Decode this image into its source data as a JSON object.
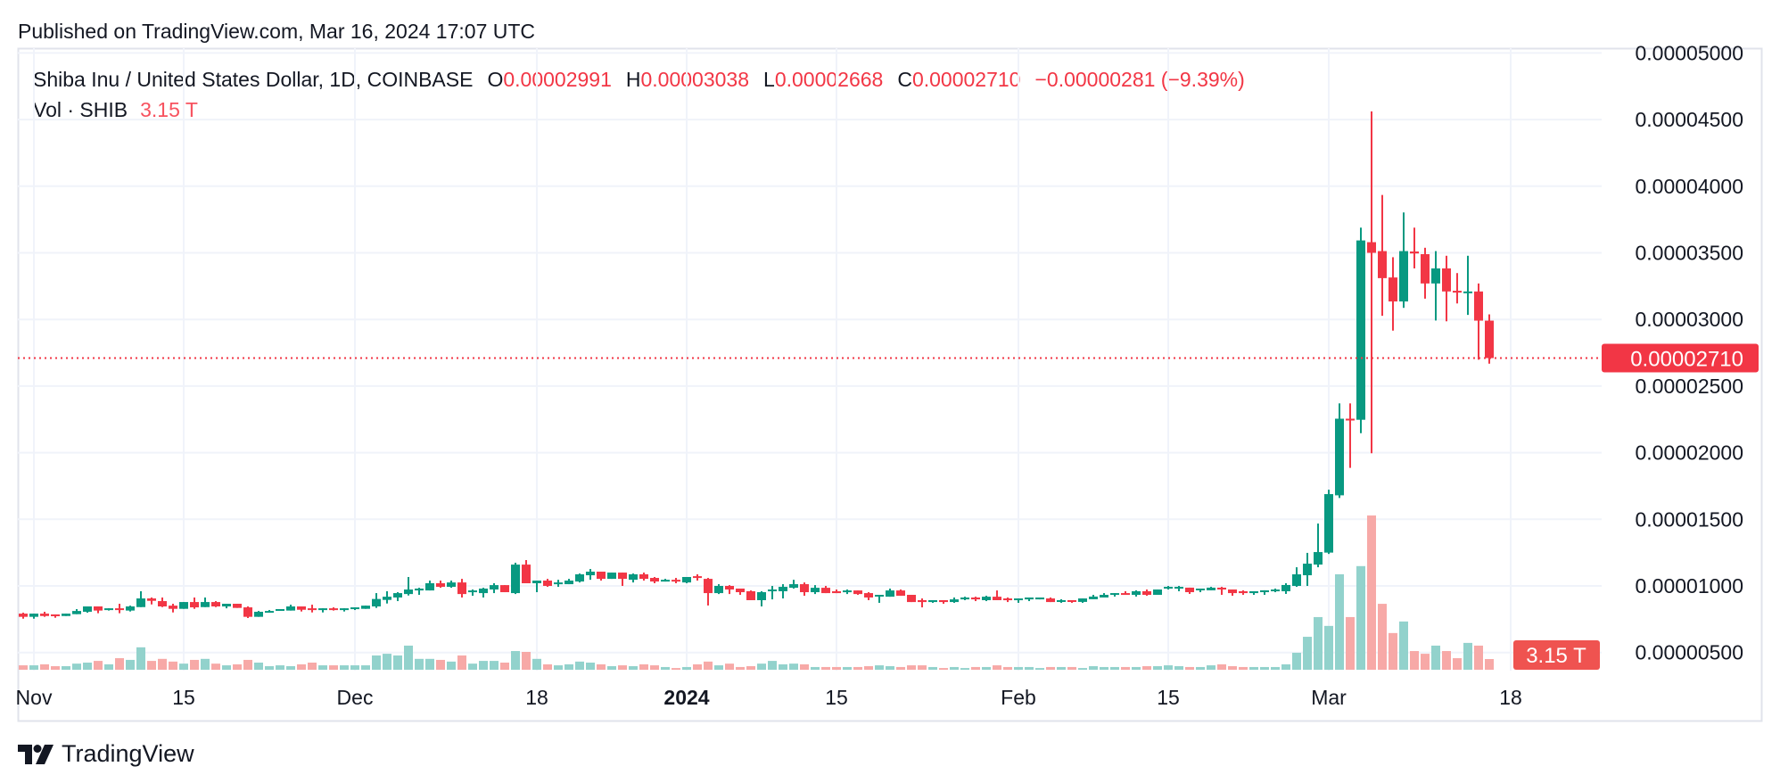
{
  "published": "Published on TradingView.com, Mar 16, 2024 17:07 UTC",
  "legend": {
    "symbol": "Shiba Inu / United States Dollar, 1D, COINBASE",
    "open_label": "O",
    "open": "0.00002991",
    "high_label": "H",
    "high": "0.00003038",
    "low_label": "L",
    "low": "0.00002668",
    "close_label": "C",
    "close": "0.00002710",
    "change": "−0.00000281 (−9.39%)",
    "volume_label": "Vol · SHIB",
    "volume": "3.15 T"
  },
  "logo": {
    "text": "TradingView",
    "icon": "tradingview-logo-icon"
  },
  "colors": {
    "up": "#089981",
    "down": "#f23645",
    "volume_up": "#92d2cc",
    "volume_down": "#f7a9a7",
    "grid": "#f0f3fa",
    "frame": "#e0e3eb"
  },
  "chart_data": {
    "type": "candlestick",
    "volume_unit": "T",
    "grid": true,
    "price_axis": {
      "position": "right",
      "ticks": [
        "0.00005000",
        "0.00004500",
        "0.00004000",
        "0.00003500",
        "0.00003000",
        "0.00002500",
        "0.00002000",
        "0.00001500",
        "0.00001000",
        "0.00000500"
      ],
      "last_price": 2.71e-05,
      "last_price_label": "0.00002710",
      "last_volume_label": "3.15 T"
    },
    "time_axis": {
      "ticks": [
        {
          "label": "Nov",
          "date": "2023-11-01",
          "bold": false
        },
        {
          "label": "15",
          "date": "2023-11-15",
          "bold": false
        },
        {
          "label": "Dec",
          "date": "2023-12-01",
          "bold": false
        },
        {
          "label": "18",
          "date": "2023-12-18",
          "bold": false
        },
        {
          "label": "2024",
          "date": "2024-01-01",
          "bold": true
        },
        {
          "label": "15",
          "date": "2024-01-15",
          "bold": false
        },
        {
          "label": "Feb",
          "date": "2024-02-01",
          "bold": false
        },
        {
          "label": "15",
          "date": "2024-02-15",
          "bold": false
        },
        {
          "label": "Mar",
          "date": "2024-03-01",
          "bold": false
        },
        {
          "label": "18",
          "date": "2024-03-18",
          "bold": false
        }
      ]
    },
    "columns": [
      "date",
      "open",
      "high",
      "low",
      "close",
      "volume"
    ],
    "candles": [
      [
        "2023-10-31",
        7.92e-06,
        7.99e-06,
        7.54e-06,
        7.68e-06,
        1.3
      ],
      [
        "2023-11-01",
        7.68e-06,
        7.92e-06,
        7.54e-06,
        7.92e-06,
        1.3
      ],
      [
        "2023-11-02",
        7.92e-06,
        8.06e-06,
        7.68e-06,
        7.74e-06,
        1.6
      ],
      [
        "2023-11-03",
        7.86e-06,
        7.86e-06,
        7.61e-06,
        7.74e-06,
        1.05
      ],
      [
        "2023-11-04",
        7.74e-06,
        7.92e-06,
        7.74e-06,
        7.92e-06,
        1.05
      ],
      [
        "2023-11-05",
        7.88e-06,
        8.26e-06,
        7.88e-06,
        8.12e-06,
        1.8
      ],
      [
        "2023-11-06",
        8.06e-06,
        8.46e-06,
        7.99e-06,
        8.46e-06,
        2.1
      ],
      [
        "2023-11-07",
        8.46e-06,
        8.46e-06,
        7.95e-06,
        8.15e-06,
        2.6
      ],
      [
        "2023-11-08",
        8.21e-06,
        8.32e-06,
        8.15e-06,
        8.32e-06,
        1.6
      ],
      [
        "2023-11-09",
        8.32e-06,
        8.66e-06,
        7.95e-06,
        8.21e-06,
        3.4
      ],
      [
        "2023-11-10",
        8.15e-06,
        8.52e-06,
        8.08e-06,
        8.46e-06,
        2.9
      ],
      [
        "2023-11-11",
        8.41e-06,
        9.6e-06,
        8.41e-06,
        9.06e-06,
        6.6
      ],
      [
        "2023-11-12",
        9.06e-06,
        9.13e-06,
        8.61e-06,
        8.88e-06,
        2.6
      ],
      [
        "2023-11-13",
        8.86e-06,
        9.13e-06,
        8.41e-06,
        8.46e-06,
        3.2
      ],
      [
        "2023-11-14",
        8.52e-06,
        8.66e-06,
        8.01e-06,
        8.28e-06,
        2.4
      ],
      [
        "2023-11-15",
        8.28e-06,
        8.79e-06,
        8.28e-06,
        8.79e-06,
        1.8
      ],
      [
        "2023-11-16",
        8.79e-06,
        9.13e-06,
        8.28e-06,
        8.39e-06,
        2.9
      ],
      [
        "2023-11-17",
        8.41e-06,
        9.13e-06,
        8.41e-06,
        8.79e-06,
        3.2
      ],
      [
        "2023-11-18",
        8.79e-06,
        8.86e-06,
        8.41e-06,
        8.46e-06,
        1.8
      ],
      [
        "2023-11-19",
        8.46e-06,
        8.66e-06,
        8.32e-06,
        8.66e-06,
        1.3
      ],
      [
        "2023-11-20",
        8.66e-06,
        8.66e-06,
        8.35e-06,
        8.35e-06,
        1.6
      ],
      [
        "2023-11-21",
        8.39e-06,
        8.46e-06,
        7.59e-06,
        7.68e-06,
        2.9
      ],
      [
        "2023-11-22",
        7.68e-06,
        8.12e-06,
        7.68e-06,
        8.06e-06,
        2.1
      ],
      [
        "2023-11-23",
        8.01e-06,
        8.19e-06,
        8.01e-06,
        8.12e-06,
        1.05
      ],
      [
        "2023-11-24",
        8.15e-06,
        8.26e-06,
        8.15e-06,
        8.26e-06,
        1.3
      ],
      [
        "2023-11-25",
        8.15e-06,
        8.59e-06,
        8.15e-06,
        8.46e-06,
        1.05
      ],
      [
        "2023-11-26",
        8.46e-06,
        8.46e-06,
        8.08e-06,
        8.21e-06,
        1.6
      ],
      [
        "2023-11-27",
        8.32e-06,
        8.59e-06,
        8.01e-06,
        8.21e-06,
        2.1
      ],
      [
        "2023-11-28",
        8.21e-06,
        8.32e-06,
        8.01e-06,
        8.32e-06,
        1.3
      ],
      [
        "2023-11-29",
        8.32e-06,
        8.39e-06,
        8.15e-06,
        8.21e-06,
        1.3
      ],
      [
        "2023-11-30",
        8.21e-06,
        8.32e-06,
        8.08e-06,
        8.32e-06,
        1.3
      ],
      [
        "2023-12-01",
        8.28e-06,
        8.39e-06,
        8.19e-06,
        8.39e-06,
        1.3
      ],
      [
        "2023-12-02",
        8.28e-06,
        8.52e-06,
        8.28e-06,
        8.52e-06,
        1.3
      ],
      [
        "2023-12-03",
        8.46e-06,
        9.46e-06,
        8.35e-06,
        9.02e-06,
        4.2
      ],
      [
        "2023-12-04",
        8.95e-06,
        9.6e-06,
        8.68e-06,
        9.19e-06,
        4.7
      ],
      [
        "2023-12-05",
        9.13e-06,
        9.53e-06,
        8.86e-06,
        9.46e-06,
        4.2
      ],
      [
        "2023-12-06",
        9.39e-06,
        1.067e-05,
        9.28e-06,
        9.73e-06,
        7.1
      ],
      [
        "2023-12-07",
        9.66e-06,
        9.86e-06,
        9.33e-06,
        9.8e-06,
        3.2
      ],
      [
        "2023-12-08",
        9.66e-06,
        1.04e-05,
        9.66e-06,
        1.02e-05,
        3.2
      ],
      [
        "2023-12-09",
        1.02e-05,
        1.04e-05,
        9.86e-06,
        9.93e-06,
        2.9
      ],
      [
        "2023-12-10",
        9.93e-06,
        1.04e-05,
        9.86e-06,
        1.026e-05,
        2.4
      ],
      [
        "2023-12-11",
        1.026e-05,
        1.053e-05,
        9.13e-06,
        9.39e-06,
        4.2
      ],
      [
        "2023-12-12",
        9.53e-06,
        9.73e-06,
        9.26e-06,
        9.66e-06,
        1.8
      ],
      [
        "2023-12-13",
        9.46e-06,
        9.86e-06,
        9.13e-06,
        9.8e-06,
        2.6
      ],
      [
        "2023-12-14",
        9.73e-06,
        1.02e-05,
        9.46e-06,
        1.006e-05,
        2.6
      ],
      [
        "2023-12-15",
        1.006e-05,
        1.006e-05,
        9.53e-06,
        9.53e-06,
        2.1
      ],
      [
        "2023-12-16",
        9.46e-06,
        1.174e-05,
        9.39e-06,
        1.16e-05,
        5.5
      ],
      [
        "2023-12-17",
        1.16e-05,
        1.194e-05,
        1.02e-05,
        1.02e-05,
        5.25
      ],
      [
        "2023-12-18",
        1.02e-05,
        1.04e-05,
        9.53e-06,
        1.04e-05,
        3.2
      ],
      [
        "2023-12-19",
        1.04e-05,
        1.053e-05,
        9.93e-06,
        1e-05,
        1.6
      ],
      [
        "2023-12-20",
        1.013e-05,
        1.046e-05,
        9.93e-06,
        1.026e-05,
        1.3
      ],
      [
        "2023-12-21",
        1.013e-05,
        1.053e-05,
        1.013e-05,
        1.04e-05,
        1.6
      ],
      [
        "2023-12-22",
        1.033e-05,
        1.093e-05,
        1.026e-05,
        1.087e-05,
        2.4
      ],
      [
        "2023-12-23",
        1.08e-05,
        1.127e-05,
        1.046e-05,
        1.107e-05,
        2.1
      ],
      [
        "2023-12-24",
        1.107e-05,
        1.107e-05,
        1.04e-05,
        1.053e-05,
        1.6
      ],
      [
        "2023-12-25",
        1.053e-05,
        1.1e-05,
        1.053e-05,
        1.1e-05,
        1.05
      ],
      [
        "2023-12-26",
        1.1e-05,
        1.1e-05,
        1e-05,
        1.053e-05,
        1.3
      ],
      [
        "2023-12-27",
        1.046e-05,
        1.093e-05,
        1.026e-05,
        1.087e-05,
        1.05
      ],
      [
        "2023-12-28",
        1.087e-05,
        1.1e-05,
        1.04e-05,
        1.053e-05,
        1.6
      ],
      [
        "2023-12-29",
        1.06e-05,
        1.067e-05,
        1.02e-05,
        1.033e-05,
        1.3
      ],
      [
        "2023-12-30",
        1.033e-05,
        1.053e-05,
        1.033e-05,
        1.046e-05,
        0.8
      ],
      [
        "2023-12-31",
        1.046e-05,
        1.06e-05,
        1.02e-05,
        1.033e-05,
        0.5
      ],
      [
        "2024-01-01",
        1.026e-05,
        1.067e-05,
        1.02e-05,
        1.067e-05,
        0.8
      ],
      [
        "2024-01-02",
        1.073e-05,
        1.087e-05,
        1.04e-05,
        1.06e-05,
        1.6
      ],
      [
        "2024-01-03",
        1.053e-05,
        1.06e-05,
        8.53e-06,
        9.46e-06,
        2.4
      ],
      [
        "2024-01-04",
        9.46e-06,
        1.013e-05,
        9.39e-06,
        1e-05,
        1.3
      ],
      [
        "2024-01-05",
        1e-05,
        1.006e-05,
        9.39e-06,
        9.73e-06,
        1.8
      ],
      [
        "2024-01-06",
        9.8e-06,
        9.8e-06,
        9.33e-06,
        9.53e-06,
        0.8
      ],
      [
        "2024-01-07",
        9.6e-06,
        9.66e-06,
        8.93e-06,
        8.93e-06,
        1.05
      ],
      [
        "2024-01-08",
        8.93e-06,
        9.6e-06,
        8.46e-06,
        9.53e-06,
        1.8
      ],
      [
        "2024-01-09",
        9.6e-06,
        1e-05,
        8.99e-06,
        9.73e-06,
        2.6
      ],
      [
        "2024-01-10",
        9.6e-06,
        1.013e-05,
        9.06e-06,
        9.93e-06,
        1.6
      ],
      [
        "2024-01-11",
        9.86e-06,
        1.046e-05,
        9.8e-06,
        1.013e-05,
        1.8
      ],
      [
        "2024-01-12",
        1.013e-05,
        1.026e-05,
        9.26e-06,
        9.53e-06,
        1.6
      ],
      [
        "2024-01-13",
        9.53e-06,
        1.006e-05,
        9.39e-06,
        9.86e-06,
        0.8
      ],
      [
        "2024-01-14",
        9.86e-06,
        1e-05,
        9.46e-06,
        9.46e-06,
        0.8
      ],
      [
        "2024-01-15",
        9.6e-06,
        9.73e-06,
        9.46e-06,
        9.46e-06,
        0.8
      ],
      [
        "2024-01-16",
        9.53e-06,
        9.73e-06,
        9.39e-06,
        9.66e-06,
        0.8
      ],
      [
        "2024-01-17",
        9.66e-06,
        9.66e-06,
        9.33e-06,
        9.39e-06,
        0.8
      ],
      [
        "2024-01-18",
        9.46e-06,
        9.53e-06,
        8.93e-06,
        9.13e-06,
        1.05
      ],
      [
        "2024-01-19",
        9.26e-06,
        9.33e-06,
        8.73e-06,
        9.33e-06,
        1.3
      ],
      [
        "2024-01-20",
        9.19e-06,
        9.8e-06,
        9.19e-06,
        9.66e-06,
        1.05
      ],
      [
        "2024-01-21",
        9.66e-06,
        9.73e-06,
        9.26e-06,
        9.26e-06,
        0.8
      ],
      [
        "2024-01-22",
        9.33e-06,
        9.33e-06,
        8.79e-06,
        8.79e-06,
        1.3
      ],
      [
        "2024-01-23",
        8.93e-06,
        9.06e-06,
        8.39e-06,
        8.79e-06,
        1.3
      ],
      [
        "2024-01-24",
        8.79e-06,
        8.93e-06,
        8.73e-06,
        8.93e-06,
        0.8
      ],
      [
        "2024-01-25",
        8.93e-06,
        8.93e-06,
        8.66e-06,
        8.79e-06,
        0.5
      ],
      [
        "2024-01-26",
        8.79e-06,
        9.13e-06,
        8.73e-06,
        8.99e-06,
        0.8
      ],
      [
        "2024-01-27",
        8.99e-06,
        9.19e-06,
        8.93e-06,
        9.13e-06,
        0.5
      ],
      [
        "2024-01-28",
        9.13e-06,
        9.19e-06,
        8.86e-06,
        8.99e-06,
        0.8
      ],
      [
        "2024-01-29",
        8.93e-06,
        9.26e-06,
        8.86e-06,
        9.19e-06,
        0.8
      ],
      [
        "2024-01-30",
        9.19e-06,
        9.66e-06,
        8.93e-06,
        8.93e-06,
        1.3
      ],
      [
        "2024-01-31",
        9.06e-06,
        9.13e-06,
        8.79e-06,
        8.93e-06,
        0.8
      ],
      [
        "2024-02-01",
        8.93e-06,
        9.06e-06,
        8.73e-06,
        9.06e-06,
        0.8
      ],
      [
        "2024-02-02",
        8.99e-06,
        9.13e-06,
        8.86e-06,
        9.13e-06,
        0.8
      ],
      [
        "2024-02-03",
        8.99e-06,
        9.13e-06,
        8.99e-06,
        9.13e-06,
        0.5
      ],
      [
        "2024-02-04",
        9.06e-06,
        9.13e-06,
        8.79e-06,
        8.79e-06,
        0.8
      ],
      [
        "2024-02-05",
        8.8e-06,
        9e-06,
        8.73e-06,
        8.93e-06,
        0.8
      ],
      [
        "2024-02-06",
        8.93e-06,
        8.93e-06,
        8.73e-06,
        8.8e-06,
        0.8
      ],
      [
        "2024-02-07",
        8.8e-06,
        9.06e-06,
        8.73e-06,
        9.06e-06,
        0.5
      ],
      [
        "2024-02-08",
        9e-06,
        9.33e-06,
        9e-06,
        9.2e-06,
        1.05
      ],
      [
        "2024-02-09",
        9.13e-06,
        9.46e-06,
        9.13e-06,
        9.33e-06,
        0.8
      ],
      [
        "2024-02-10",
        9.33e-06,
        9.46e-06,
        9.2e-06,
        9.46e-06,
        0.8
      ],
      [
        "2024-02-11",
        9.46e-06,
        9.6e-06,
        9.33e-06,
        9.33e-06,
        0.8
      ],
      [
        "2024-02-12",
        9.33e-06,
        9.67e-06,
        9.2e-06,
        9.6e-06,
        0.8
      ],
      [
        "2024-02-13",
        9.6e-06,
        9.73e-06,
        9.26e-06,
        9.33e-06,
        1.05
      ],
      [
        "2024-02-14",
        9.33e-06,
        9.73e-06,
        9.33e-06,
        9.73e-06,
        1.05
      ],
      [
        "2024-02-15",
        9.8e-06,
        1e-05,
        9.73e-06,
        9.93e-06,
        1.3
      ],
      [
        "2024-02-16",
        9.8e-06,
        1e-05,
        9.6e-06,
        9.93e-06,
        1.05
      ],
      [
        "2024-02-17",
        9.87e-06,
        9.87e-06,
        9.4e-06,
        9.53e-06,
        0.8
      ],
      [
        "2024-02-18",
        9.67e-06,
        9.8e-06,
        9.53e-06,
        9.8e-06,
        0.8
      ],
      [
        "2024-02-19",
        9.67e-06,
        9.93e-06,
        9.67e-06,
        9.87e-06,
        1.3
      ],
      [
        "2024-02-20",
        9.87e-06,
        9.93e-06,
        9.33e-06,
        9.73e-06,
        1.6
      ],
      [
        "2024-02-21",
        9.73e-06,
        9.73e-06,
        9.26e-06,
        9.46e-06,
        1.05
      ],
      [
        "2024-02-22",
        9.6e-06,
        9.67e-06,
        9.33e-06,
        9.46e-06,
        0.8
      ],
      [
        "2024-02-23",
        9.46e-06,
        9.6e-06,
        9.33e-06,
        9.6e-06,
        0.8
      ],
      [
        "2024-02-24",
        9.53e-06,
        9.67e-06,
        9.33e-06,
        9.67e-06,
        0.8
      ],
      [
        "2024-02-25",
        9.6e-06,
        9.8e-06,
        9.53e-06,
        9.73e-06,
        0.8
      ],
      [
        "2024-02-26",
        9.6e-06,
        1.02e-05,
        9.4e-06,
        1.007e-05,
        1.6
      ],
      [
        "2024-02-27",
        1e-05,
        1.14e-05,
        9.93e-06,
        1.087e-05,
        5.0
      ],
      [
        "2024-02-28",
        1.08e-05,
        1.248e-05,
        1e-05,
        1.167e-05,
        9.7
      ],
      [
        "2024-02-29",
        1.16e-05,
        1.468e-05,
        1.14e-05,
        1.254e-05,
        15.5
      ],
      [
        "2024-03-01",
        1.25e-05,
        1.722e-05,
        1.24e-05,
        1.689e-05,
        12.9
      ],
      [
        "2024-03-02",
        1.68e-05,
        2.37e-05,
        1.66e-05,
        2.255e-05,
        28.1
      ],
      [
        "2024-03-03",
        2.255e-05,
        2.37e-05,
        1.886e-05,
        2.245e-05,
        15.5
      ],
      [
        "2024-03-04",
        2.247e-05,
        3.689e-05,
        2.146e-05,
        3.593e-05,
        30.5
      ],
      [
        "2024-03-05",
        3.58e-05,
        4.562e-05,
        1.996e-05,
        3.5e-05,
        45.4
      ],
      [
        "2024-03-06",
        3.513e-05,
        3.934e-05,
        3.027e-05,
        3.31e-05,
        19.4
      ],
      [
        "2024-03-07",
        3.315e-05,
        3.467e-05,
        2.916e-05,
        3.135e-05,
        10.8
      ],
      [
        "2024-03-08",
        3.135e-05,
        3.803e-05,
        3.087e-05,
        3.513e-05,
        14.2
      ],
      [
        "2024-03-09",
        3.51e-05,
        3.689e-05,
        3.383e-05,
        3.495e-05,
        5.5
      ],
      [
        "2024-03-10",
        3.49e-05,
        3.538e-05,
        3.156e-05,
        3.27e-05,
        4.7
      ],
      [
        "2024-03-11",
        3.27e-05,
        3.513e-05,
        2.992e-05,
        3.383e-05,
        7.1
      ],
      [
        "2024-03-12",
        3.383e-05,
        3.478e-05,
        2.986e-05,
        3.21e-05,
        5.5
      ],
      [
        "2024-03-13",
        3.215e-05,
        3.348e-05,
        3.12e-05,
        3.205e-05,
        3.4
      ],
      [
        "2024-03-14",
        3.205e-05,
        3.478e-05,
        3.034e-05,
        3.21e-05,
        7.9
      ],
      [
        "2024-03-15",
        3.21e-05,
        3.27e-05,
        2.698e-05,
        2.991e-05,
        7.1
      ],
      [
        "2024-03-16",
        2.991e-05,
        3.038e-05,
        2.668e-05,
        2.71e-05,
        3.15
      ]
    ]
  }
}
